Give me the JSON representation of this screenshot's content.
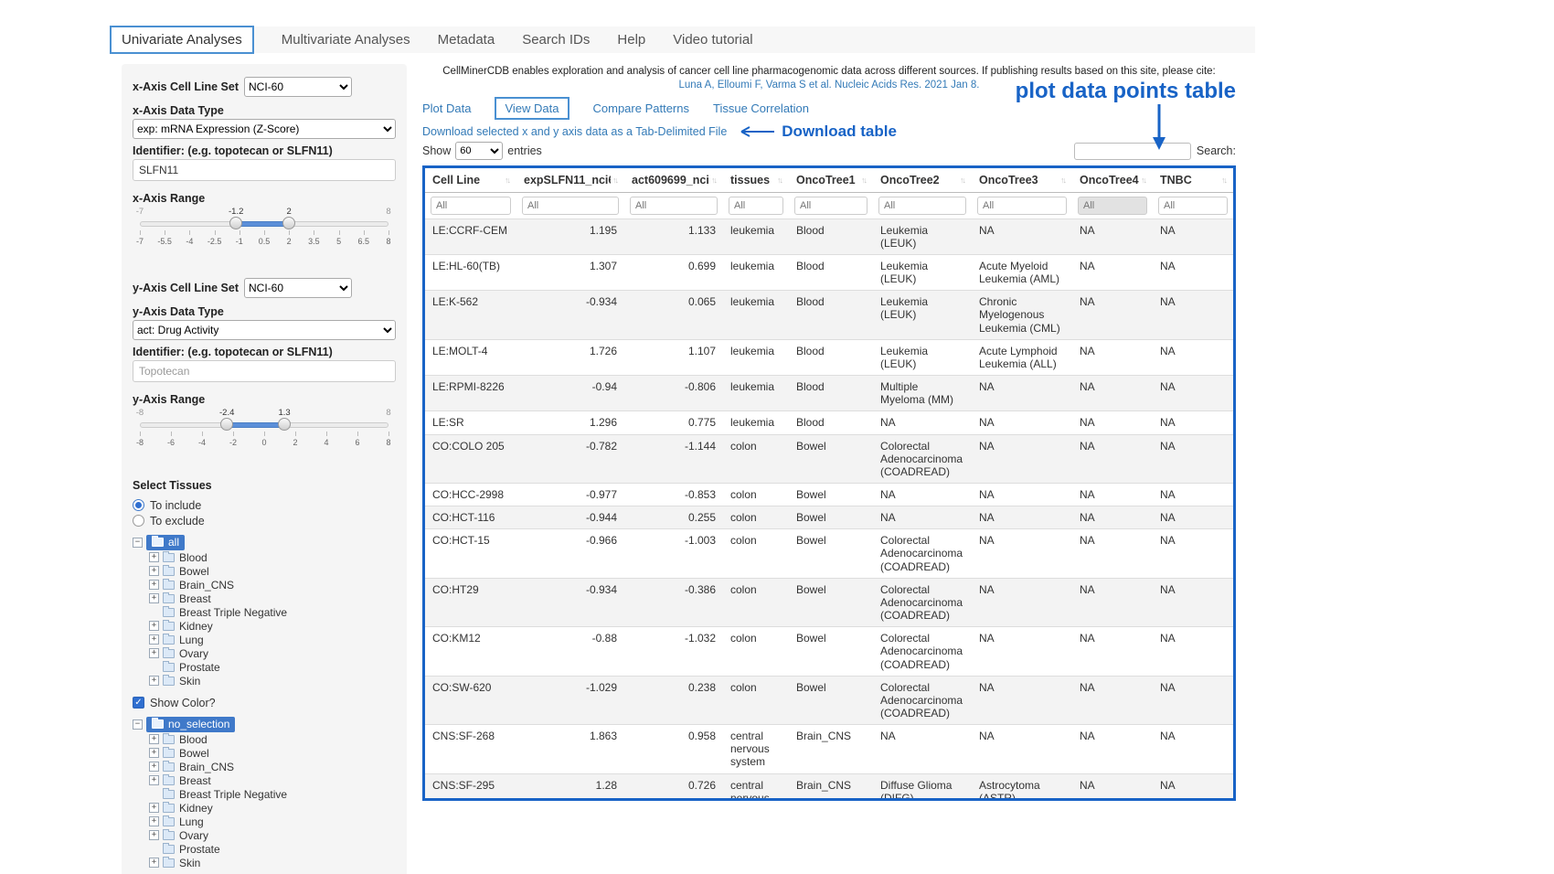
{
  "nav": {
    "tabs": [
      "Univariate Analyses",
      "Multivariate Analyses",
      "Metadata",
      "Search IDs",
      "Help",
      "Video tutorial"
    ],
    "active": "Univariate Analyses"
  },
  "sidebar": {
    "x_axis": {
      "cell_line_set_label": "x-Axis Cell Line Set",
      "cell_line_set_value": "NCI-60",
      "data_type_label": "x-Axis Data Type",
      "data_type_value": "exp: mRNA Expression (Z-Score)",
      "identifier_label": "Identifier: (e.g. topotecan or SLFN11)",
      "identifier_value": "SLFN11",
      "range_label": "x-Axis Range",
      "range": {
        "min": -7,
        "max": 8,
        "low": -1.2,
        "high": 2,
        "ticks": [
          "-7",
          "-5.5",
          "-4",
          "-2.5",
          "-1",
          "0.5",
          "2",
          "3.5",
          "5",
          "6.5",
          "8"
        ]
      }
    },
    "y_axis": {
      "cell_line_set_label": "y-Axis Cell Line Set",
      "cell_line_set_value": "NCI-60",
      "data_type_label": "y-Axis Data Type",
      "data_type_value": "act: Drug Activity",
      "identifier_label": "Identifier: (e.g. topotecan or SLFN11)",
      "identifier_value": "Topotecan",
      "range_label": "y-Axis Range",
      "range": {
        "min": -8,
        "max": 8,
        "low": -2.4,
        "high": 1.3,
        "ticks": [
          "-8",
          "-6",
          "-4",
          "-2",
          "0",
          "2",
          "4",
          "6",
          "8"
        ]
      }
    },
    "select_tissues_label": "Select Tissues",
    "include_option": "To include",
    "exclude_option": "To exclude",
    "include_selected": true,
    "show_color_label": "Show Color?",
    "show_color_checked": true,
    "tissue_tree": {
      "root": "all",
      "items": [
        {
          "label": "Blood",
          "expandable": true
        },
        {
          "label": "Bowel",
          "expandable": true
        },
        {
          "label": "Brain_CNS",
          "expandable": true
        },
        {
          "label": "Breast",
          "expandable": true
        },
        {
          "label": "Breast Triple Negative",
          "expandable": false
        },
        {
          "label": "Kidney",
          "expandable": true
        },
        {
          "label": "Lung",
          "expandable": true
        },
        {
          "label": "Ovary",
          "expandable": true
        },
        {
          "label": "Prostate",
          "expandable": false
        },
        {
          "label": "Skin",
          "expandable": true
        }
      ]
    },
    "color_tree": {
      "root": "no_selection",
      "items": [
        {
          "label": "Blood",
          "expandable": true
        },
        {
          "label": "Bowel",
          "expandable": true
        },
        {
          "label": "Brain_CNS",
          "expandable": true
        },
        {
          "label": "Breast",
          "expandable": true
        },
        {
          "label": "Breast Triple Negative",
          "expandable": false
        },
        {
          "label": "Kidney",
          "expandable": true
        },
        {
          "label": "Lung",
          "expandable": true
        },
        {
          "label": "Ovary",
          "expandable": true
        },
        {
          "label": "Prostate",
          "expandable": false
        },
        {
          "label": "Skin",
          "expandable": true
        }
      ]
    }
  },
  "main": {
    "citation_text": "CellMinerCDB enables exploration and analysis of cancer cell line pharmacogenomic data across different sources. If publishing results based on this site, please cite:",
    "citation_link": "Luna A, Elloumi F, Varma S et al. Nucleic Acids Res. 2021 Jan 8.",
    "tabs": [
      "Plot Data",
      "View Data",
      "Compare Patterns",
      "Tissue Correlation"
    ],
    "active_tab": "View Data",
    "download_link": "Download selected x and y axis data as a Tab-Delimited File",
    "show_label": "Show",
    "entries_value": "60",
    "entries_suffix": "entries",
    "search_label": "Search:"
  },
  "annotations": {
    "download_label": "Download table",
    "table_label": "plot data points table",
    "color": "#1863c6"
  },
  "table": {
    "columns": [
      "Cell Line",
      "expSLFN11_nci60",
      "act609699_nci60",
      "tissues",
      "OncoTree1",
      "OncoTree2",
      "OncoTree3",
      "OncoTree4",
      "TNBC"
    ],
    "filter_placeholder": "All",
    "rows": [
      [
        "LE:CCRF-CEM",
        "1.195",
        "1.133",
        "leukemia",
        "Blood",
        "Leukemia (LEUK)",
        "NA",
        "NA",
        "NA"
      ],
      [
        "LE:HL-60(TB)",
        "1.307",
        "0.699",
        "leukemia",
        "Blood",
        "Leukemia (LEUK)",
        "Acute Myeloid Leukemia (AML)",
        "NA",
        "NA"
      ],
      [
        "LE:K-562",
        "-0.934",
        "0.065",
        "leukemia",
        "Blood",
        "Leukemia (LEUK)",
        "Chronic Myelogenous Leukemia (CML)",
        "NA",
        "NA"
      ],
      [
        "LE:MOLT-4",
        "1.726",
        "1.107",
        "leukemia",
        "Blood",
        "Leukemia (LEUK)",
        "Acute Lymphoid Leukemia (ALL)",
        "NA",
        "NA"
      ],
      [
        "LE:RPMI-8226",
        "-0.94",
        "-0.806",
        "leukemia",
        "Blood",
        "Multiple Myeloma (MM)",
        "NA",
        "NA",
        "NA"
      ],
      [
        "LE:SR",
        "1.296",
        "0.775",
        "leukemia",
        "Blood",
        "NA",
        "NA",
        "NA",
        "NA"
      ],
      [
        "CO:COLO 205",
        "-0.782",
        "-1.144",
        "colon",
        "Bowel",
        "Colorectal Adenocarcinoma (COADREAD)",
        "NA",
        "NA",
        "NA"
      ],
      [
        "CO:HCC-2998",
        "-0.977",
        "-0.853",
        "colon",
        "Bowel",
        "NA",
        "NA",
        "NA",
        "NA"
      ],
      [
        "CO:HCT-116",
        "-0.944",
        "0.255",
        "colon",
        "Bowel",
        "NA",
        "NA",
        "NA",
        "NA"
      ],
      [
        "CO:HCT-15",
        "-0.966",
        "-1.003",
        "colon",
        "Bowel",
        "Colorectal Adenocarcinoma (COADREAD)",
        "NA",
        "NA",
        "NA"
      ],
      [
        "CO:HT29",
        "-0.934",
        "-0.386",
        "colon",
        "Bowel",
        "Colorectal Adenocarcinoma (COADREAD)",
        "NA",
        "NA",
        "NA"
      ],
      [
        "CO:KM12",
        "-0.88",
        "-1.032",
        "colon",
        "Bowel",
        "Colorectal Adenocarcinoma (COADREAD)",
        "NA",
        "NA",
        "NA"
      ],
      [
        "CO:SW-620",
        "-1.029",
        "0.238",
        "colon",
        "Bowel",
        "Colorectal Adenocarcinoma (COADREAD)",
        "NA",
        "NA",
        "NA"
      ],
      [
        "CNS:SF-268",
        "1.863",
        "0.958",
        "central nervous system",
        "Brain_CNS",
        "NA",
        "NA",
        "NA",
        "NA"
      ],
      [
        "CNS:SF-295",
        "1.28",
        "0.726",
        "central nervous system",
        "Brain_CNS",
        "Diffuse Glioma (DIFG)",
        "Astrocytoma (ASTR)",
        "NA",
        "NA"
      ]
    ]
  }
}
